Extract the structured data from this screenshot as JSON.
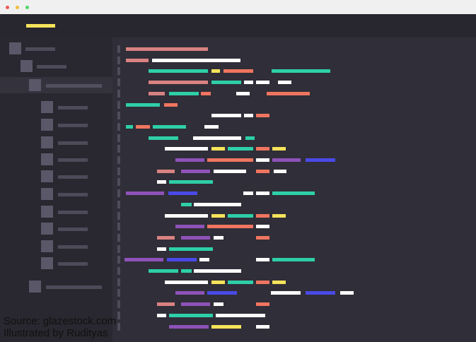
{
  "window": {
    "controls": [
      {
        "name": "close",
        "color": "#ee5a52"
      },
      {
        "name": "minimize",
        "color": "#f0bd3a"
      },
      {
        "name": "maximize",
        "color": "#4fd869"
      }
    ]
  },
  "colors": {
    "pink": "#d98282",
    "teal": "#2ecfa8",
    "yellow": "#f5e35a",
    "coral": "#f07560",
    "white": "#ffffff",
    "purple": "#8e52b8",
    "blue": "#4a4ae8"
  },
  "sidebar": {
    "selected_item": 3
  },
  "credit": {
    "line1": "Source: glazestock.com",
    "line2": "Illustrated by Rudityas"
  }
}
